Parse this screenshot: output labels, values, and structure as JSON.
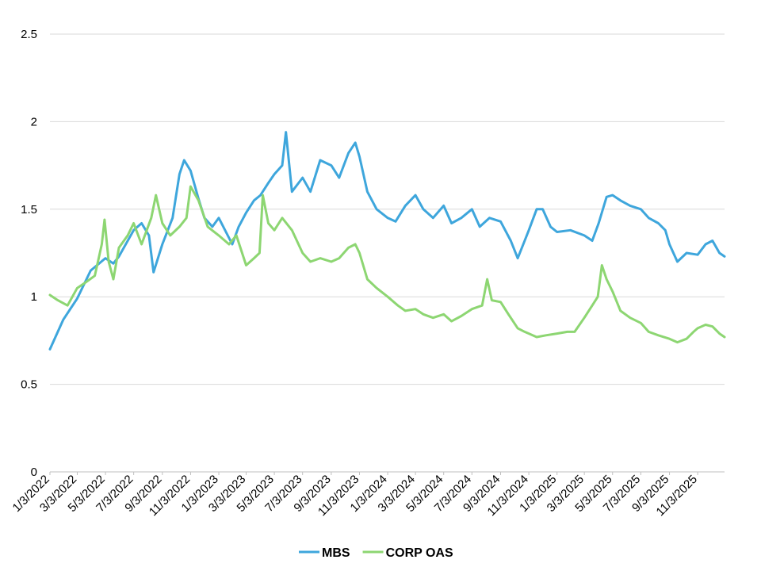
{
  "chart_data": {
    "type": "line",
    "title": "",
    "xlabel": "",
    "ylabel": "",
    "ylim": [
      0,
      2.5
    ],
    "yticks": [
      "0",
      "0.5",
      "1",
      "1.5",
      "2",
      "2.5"
    ],
    "grid": true,
    "legend_position": "bottom",
    "x_tick_labels": [
      "1/3/2022",
      "3/3/2022",
      "5/3/2022",
      "7/3/2022",
      "9/3/2022",
      "11/3/2022",
      "1/3/2023",
      "3/3/2023",
      "5/3/2023",
      "7/3/2023",
      "9/3/2023",
      "11/3/2023",
      "1/3/2024",
      "3/3/2024",
      "5/3/2024",
      "7/3/2024",
      "9/3/2024",
      "11/3/2024",
      "1/3/2025",
      "3/3/2025",
      "5/3/2025",
      "7/3/2025",
      "9/3/2025",
      "11/3/2025"
    ],
    "x_range_last_label": "12/31/2025",
    "series": [
      {
        "name": "MBS",
        "color": "#3EA6DC",
        "points": [
          [
            "1/3/2022",
            0.7
          ],
          [
            "2/1/2022",
            0.87
          ],
          [
            "3/3/2022",
            0.99
          ],
          [
            "4/1/2022",
            1.15
          ],
          [
            "5/3/2022",
            1.22
          ],
          [
            "5/20/2022",
            1.19
          ],
          [
            "6/1/2022",
            1.23
          ],
          [
            "7/3/2022",
            1.38
          ],
          [
            "7/20/2022",
            1.42
          ],
          [
            "8/5/2022",
            1.35
          ],
          [
            "8/15/2022",
            1.14
          ],
          [
            "9/3/2022",
            1.3
          ],
          [
            "9/25/2022",
            1.45
          ],
          [
            "10/10/2022",
            1.7
          ],
          [
            "10/20/2022",
            1.78
          ],
          [
            "11/3/2022",
            1.72
          ],
          [
            "11/20/2022",
            1.56
          ],
          [
            "12/3/2022",
            1.45
          ],
          [
            "12/20/2022",
            1.4
          ],
          [
            "1/3/2023",
            1.45
          ],
          [
            "2/1/2023",
            1.3
          ],
          [
            "2/15/2023",
            1.4
          ],
          [
            "3/3/2023",
            1.48
          ],
          [
            "3/20/2023",
            1.55
          ],
          [
            "4/3/2023",
            1.58
          ],
          [
            "4/20/2023",
            1.65
          ],
          [
            "5/3/2023",
            1.7
          ],
          [
            "5/20/2023",
            1.75
          ],
          [
            "5/28/2023",
            1.94
          ],
          [
            "6/10/2023",
            1.6
          ],
          [
            "7/3/2023",
            1.68
          ],
          [
            "7/20/2023",
            1.6
          ],
          [
            "8/10/2023",
            1.78
          ],
          [
            "9/3/2023",
            1.75
          ],
          [
            "9/20/2023",
            1.68
          ],
          [
            "10/10/2023",
            1.82
          ],
          [
            "10/25/2023",
            1.88
          ],
          [
            "11/3/2023",
            1.8
          ],
          [
            "11/20/2023",
            1.6
          ],
          [
            "12/10/2023",
            1.5
          ],
          [
            "1/3/2024",
            1.45
          ],
          [
            "1/20/2024",
            1.43
          ],
          [
            "2/10/2024",
            1.52
          ],
          [
            "3/3/2024",
            1.58
          ],
          [
            "3/20/2024",
            1.5
          ],
          [
            "4/10/2024",
            1.45
          ],
          [
            "5/3/2024",
            1.52
          ],
          [
            "5/20/2024",
            1.42
          ],
          [
            "6/10/2024",
            1.45
          ],
          [
            "7/3/2024",
            1.5
          ],
          [
            "7/20/2024",
            1.4
          ],
          [
            "8/10/2024",
            1.45
          ],
          [
            "9/3/2024",
            1.43
          ],
          [
            "9/25/2024",
            1.32
          ],
          [
            "10/10/2024",
            1.22
          ],
          [
            "10/25/2024",
            1.32
          ],
          [
            "11/3/2024",
            1.38
          ],
          [
            "11/20/2024",
            1.5
          ],
          [
            "12/3/2024",
            1.5
          ],
          [
            "12/20/2024",
            1.4
          ],
          [
            "1/3/2025",
            1.37
          ],
          [
            "2/1/2025",
            1.38
          ],
          [
            "3/3/2025",
            1.35
          ],
          [
            "3/20/2025",
            1.32
          ],
          [
            "4/3/2025",
            1.42
          ],
          [
            "4/20/2025",
            1.57
          ],
          [
            "5/3/2025",
            1.58
          ],
          [
            "5/20/2025",
            1.55
          ],
          [
            "6/10/2025",
            1.52
          ],
          [
            "7/3/2025",
            1.5
          ],
          [
            "7/20/2025",
            1.45
          ],
          [
            "8/10/2025",
            1.42
          ],
          [
            "8/25/2025",
            1.38
          ],
          [
            "9/3/2025",
            1.3
          ],
          [
            "9/20/2025",
            1.2
          ],
          [
            "10/10/2025",
            1.25
          ],
          [
            "11/3/2025",
            1.24
          ],
          [
            "11/20/2025",
            1.3
          ],
          [
            "12/5/2025",
            1.32
          ],
          [
            "12/20/2025",
            1.25
          ],
          [
            "12/31/2025",
            1.23
          ]
        ]
      },
      {
        "name": "CORP OAS",
        "color": "#8DD672",
        "points": [
          [
            "1/3/2022",
            1.01
          ],
          [
            "1/20/2022",
            0.98
          ],
          [
            "2/10/2022",
            0.95
          ],
          [
            "3/3/2022",
            1.05
          ],
          [
            "3/20/2022",
            1.08
          ],
          [
            "4/10/2022",
            1.12
          ],
          [
            "4/25/2022",
            1.3
          ],
          [
            "5/1/2022",
            1.44
          ],
          [
            "5/10/2022",
            1.2
          ],
          [
            "5/20/2022",
            1.1
          ],
          [
            "6/1/2022",
            1.28
          ],
          [
            "6/20/2022",
            1.35
          ],
          [
            "7/3/2022",
            1.42
          ],
          [
            "7/20/2022",
            1.3
          ],
          [
            "8/10/2022",
            1.45
          ],
          [
            "8/20/2022",
            1.58
          ],
          [
            "9/3/2022",
            1.42
          ],
          [
            "9/20/2022",
            1.35
          ],
          [
            "10/10/2022",
            1.4
          ],
          [
            "10/25/2022",
            1.45
          ],
          [
            "11/3/2022",
            1.63
          ],
          [
            "11/20/2022",
            1.55
          ],
          [
            "12/10/2022",
            1.4
          ],
          [
            "1/3/2023",
            1.35
          ],
          [
            "1/25/2023",
            1.3
          ],
          [
            "2/10/2023",
            1.35
          ],
          [
            "3/3/2023",
            1.18
          ],
          [
            "3/20/2023",
            1.22
          ],
          [
            "4/1/2023",
            1.25
          ],
          [
            "4/8/2023",
            1.58
          ],
          [
            "4/20/2023",
            1.42
          ],
          [
            "5/3/2023",
            1.38
          ],
          [
            "5/20/2023",
            1.45
          ],
          [
            "6/10/2023",
            1.38
          ],
          [
            "7/3/2023",
            1.25
          ],
          [
            "7/20/2023",
            1.2
          ],
          [
            "8/10/2023",
            1.22
          ],
          [
            "9/3/2023",
            1.2
          ],
          [
            "9/20/2023",
            1.22
          ],
          [
            "10/10/2023",
            1.28
          ],
          [
            "10/25/2023",
            1.3
          ],
          [
            "11/3/2023",
            1.25
          ],
          [
            "11/20/2023",
            1.1
          ],
          [
            "12/10/2023",
            1.05
          ],
          [
            "1/3/2024",
            1.0
          ],
          [
            "1/25/2024",
            0.95
          ],
          [
            "2/10/2024",
            0.92
          ],
          [
            "3/3/2024",
            0.93
          ],
          [
            "3/20/2024",
            0.9
          ],
          [
            "4/10/2024",
            0.88
          ],
          [
            "5/3/2024",
            0.9
          ],
          [
            "5/20/2024",
            0.86
          ],
          [
            "6/10/2024",
            0.89
          ],
          [
            "7/3/2024",
            0.93
          ],
          [
            "7/25/2024",
            0.95
          ],
          [
            "8/5/2024",
            1.1
          ],
          [
            "8/15/2024",
            0.98
          ],
          [
            "9/3/2024",
            0.97
          ],
          [
            "9/20/2024",
            0.9
          ],
          [
            "10/10/2024",
            0.82
          ],
          [
            "10/25/2024",
            0.8
          ],
          [
            "11/3/2024",
            0.79
          ],
          [
            "11/20/2024",
            0.77
          ],
          [
            "12/10/2024",
            0.78
          ],
          [
            "1/3/2025",
            0.79
          ],
          [
            "1/25/2025",
            0.8
          ],
          [
            "2/10/2025",
            0.8
          ],
          [
            "3/3/2025",
            0.88
          ],
          [
            "3/20/2025",
            0.95
          ],
          [
            "4/1/2025",
            1.0
          ],
          [
            "4/10/2025",
            1.18
          ],
          [
            "4/20/2025",
            1.1
          ],
          [
            "5/3/2025",
            1.03
          ],
          [
            "5/20/2025",
            0.92
          ],
          [
            "6/10/2025",
            0.88
          ],
          [
            "7/3/2025",
            0.85
          ],
          [
            "7/20/2025",
            0.8
          ],
          [
            "8/10/2025",
            0.78
          ],
          [
            "9/3/2025",
            0.76
          ],
          [
            "9/20/2025",
            0.74
          ],
          [
            "10/10/2025",
            0.76
          ],
          [
            "10/25/2025",
            0.8
          ],
          [
            "11/3/2025",
            0.82
          ],
          [
            "11/20/2025",
            0.84
          ],
          [
            "12/5/2025",
            0.83
          ],
          [
            "12/20/2025",
            0.79
          ],
          [
            "12/31/2025",
            0.77
          ]
        ]
      }
    ]
  }
}
